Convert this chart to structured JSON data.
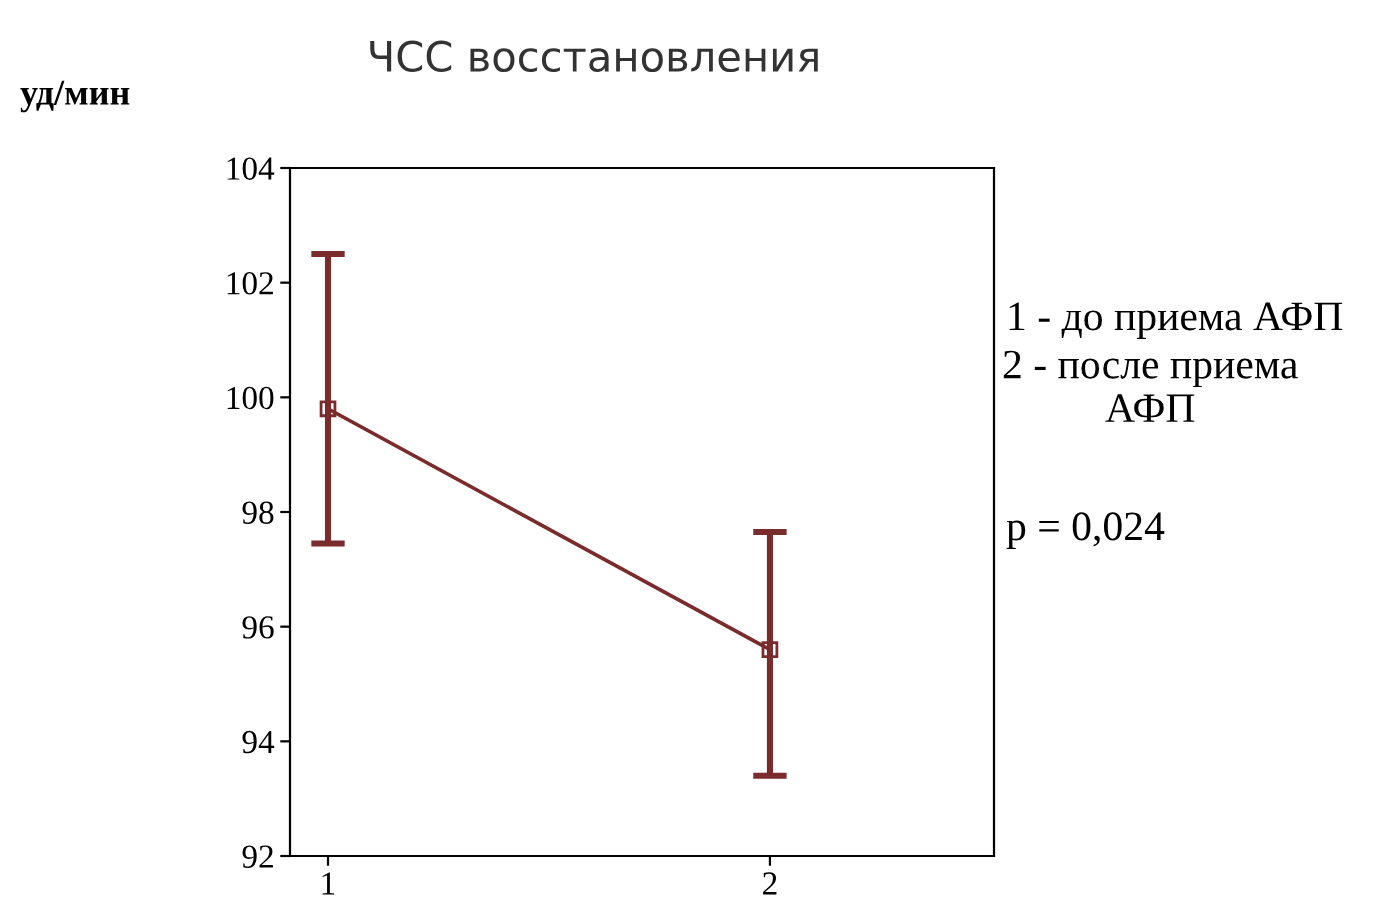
{
  "chart_data": {
    "type": "line",
    "title": "ЧСС восстановления",
    "ylabel": "уд/мин",
    "categories": [
      "1",
      "2"
    ],
    "series": [
      {
        "color": "#7a2b2b",
        "values": [
          99.8,
          95.6
        ],
        "errors": [
          [
            97.45,
            102.5
          ],
          [
            93.4,
            97.65
          ]
        ]
      }
    ],
    "ylim": [
      92,
      104
    ],
    "yticks": [
      92,
      94,
      96,
      98,
      100,
      102,
      104
    ],
    "marker": "square",
    "line_style": "solid",
    "grid": false,
    "annotations": [
      "1 - до приема АФП",
      "2 - после приема\nАФП",
      "p = 0,024"
    ]
  }
}
